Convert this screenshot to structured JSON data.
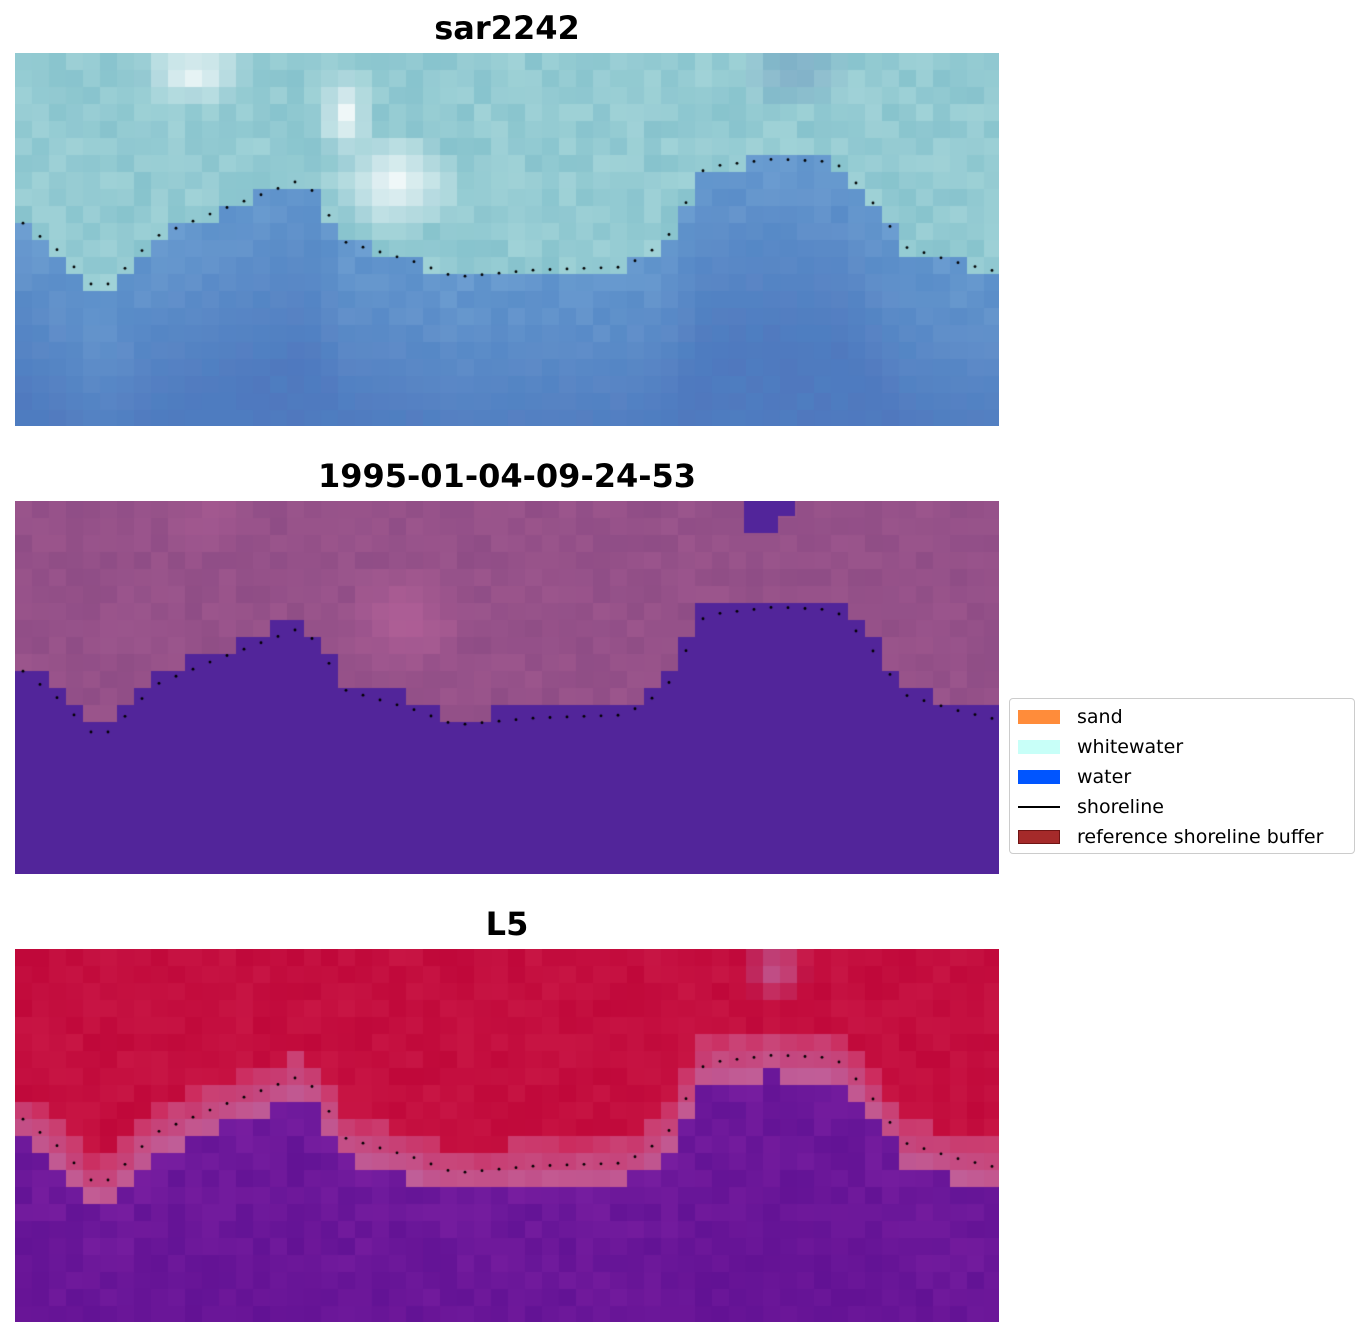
{
  "panels": [
    {
      "title": "sar2242",
      "style": "true-color"
    },
    {
      "title": "1995-01-04-09-24-53",
      "style": "classified"
    },
    {
      "title": "L5",
      "style": "index"
    }
  ],
  "legend": {
    "items": [
      {
        "label": "sand",
        "kind": "patch",
        "color": "#ff8c3a"
      },
      {
        "label": "whitewater",
        "kind": "patch",
        "color": "#c8fff8"
      },
      {
        "label": "water",
        "kind": "patch",
        "color": "#0055ff"
      },
      {
        "label": "shoreline",
        "kind": "line",
        "color": "#000000"
      },
      {
        "label": "reference shoreline buffer",
        "kind": "patch",
        "color": "#a52a2a"
      }
    ]
  },
  "colors": {
    "classified_water": "#52259a",
    "classified_land": "#8f4d86",
    "index_high": "#c0083a",
    "index_low": "#6e1aa0",
    "shoreline_points": "#000000"
  }
}
